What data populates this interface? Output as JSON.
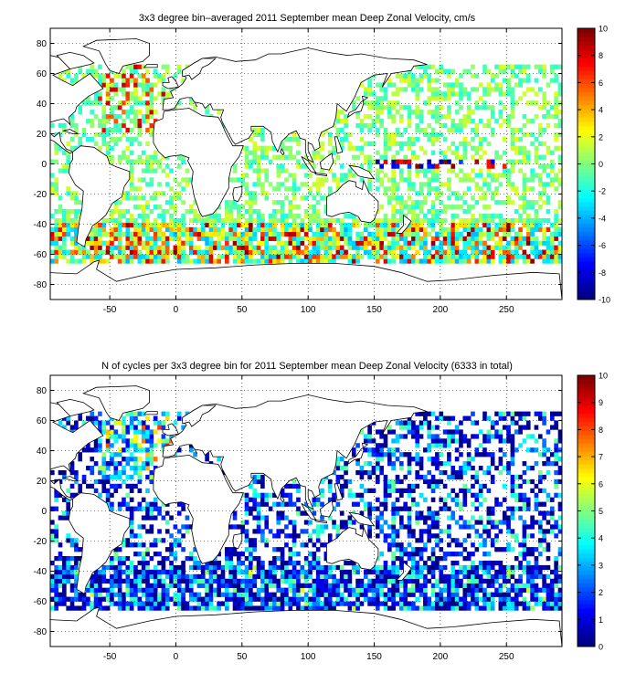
{
  "chart_data": [
    {
      "type": "heatmap",
      "title": "3x3 degree bin–averaged 2011 September mean Deep Zonal Velocity, cm/s",
      "xlim": [
        -95,
        292
      ],
      "ylim": [
        -90,
        90
      ],
      "x_ticks": [
        -50,
        0,
        50,
        100,
        150,
        200,
        250
      ],
      "y_ticks": [
        -80,
        -60,
        -40,
        -20,
        0,
        20,
        40,
        60,
        80
      ],
      "grid": true,
      "bin_size_deg": 3,
      "colorbar": {
        "min": -10,
        "max": 10,
        "ticks": [
          -10,
          -8,
          -6,
          -4,
          -2,
          0,
          2,
          4,
          6,
          8,
          10
        ],
        "colormap": "jet",
        "placement": "right"
      },
      "colors": {
        "land_outline": "#000000",
        "grid": "#000000",
        "ocean": "#ffffff"
      },
      "seed": 7,
      "mode": "velocity"
    },
    {
      "type": "heatmap",
      "title": "N of cycles per 3x3 degree bin for 2011 September mean Deep Zonal Velocity (6333 in total)",
      "xlim": [
        -95,
        292
      ],
      "ylim": [
        -90,
        90
      ],
      "x_ticks": [
        -50,
        0,
        50,
        100,
        150,
        200,
        250
      ],
      "y_ticks": [
        -80,
        -60,
        -40,
        -20,
        0,
        20,
        40,
        60,
        80
      ],
      "grid": true,
      "bin_size_deg": 3,
      "total_cycles": 6333,
      "colorbar": {
        "min": 0,
        "max": 10,
        "ticks": [
          0,
          1,
          2,
          3,
          4,
          5,
          6,
          7,
          8,
          9,
          10
        ],
        "colormap": "jet",
        "placement": "right"
      },
      "colors": {
        "land_outline": "#000000",
        "grid": "#000000",
        "ocean": "#ffffff"
      },
      "seed": 7,
      "mode": "count"
    }
  ]
}
